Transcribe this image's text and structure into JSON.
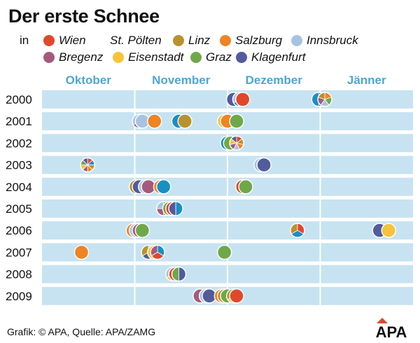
{
  "title": "Der erste Schnee",
  "legend": {
    "prefix": "in",
    "row1": [
      "Wien",
      "St. Pölten",
      "Linz",
      "Salzburg",
      "Innsbruck"
    ],
    "row2": [
      "Bregenz",
      "Eisenstadt",
      "Graz",
      "Klagenfurt"
    ]
  },
  "colors": {
    "Wien": "#e0482c",
    "St. Pölten": "#1a8fc4",
    "Linz": "#b8922e",
    "Salzburg": "#ee8424",
    "Innsbruck": "#a8c3e2",
    "Bregenz": "#a55a7c",
    "Eisenstadt": "#f6c33a",
    "Graz": "#6fa84a",
    "Klagenfurt": "#525b9c",
    "month_label": "#4ea6d2",
    "row_band": "#c7e3f1"
  },
  "footer": "Grafik: © APA, Quelle: APA/ZAMG",
  "logo": "APA",
  "chart_data": {
    "type": "scatter",
    "x_unit": "day (1 = 1 October)",
    "x_range": [
      1,
      123
    ],
    "months": [
      "Oktober",
      "November",
      "Dezember",
      "Jänner"
    ],
    "years": [
      "2000",
      "2001",
      "2002",
      "2003",
      "2004",
      "2005",
      "2006",
      "2007",
      "2008",
      "2009"
    ],
    "points": [
      {
        "year": "2000",
        "day": 64,
        "cities": [
          "Klagenfurt"
        ]
      },
      {
        "year": "2000",
        "day": 66,
        "cities": [
          "Linz",
          "St. Pölten",
          "Innsbruck"
        ]
      },
      {
        "year": "2000",
        "day": 67,
        "cities": [
          "Wien"
        ]
      },
      {
        "year": "2000",
        "day": 92,
        "cities": [
          "St. Pölten",
          "Klagenfurt"
        ]
      },
      {
        "year": "2000",
        "day": 94,
        "cities": [
          "Salzburg",
          "Graz",
          "Innsbruck",
          "Bregenz",
          "Linz"
        ]
      },
      {
        "year": "2001",
        "day": 33,
        "cities": [
          "Klagenfurt",
          "Bregenz",
          "Innsbruck"
        ]
      },
      {
        "year": "2001",
        "day": 34,
        "cities": [
          "Innsbruck"
        ]
      },
      {
        "year": "2001",
        "day": 38,
        "cities": [
          "Salzburg"
        ]
      },
      {
        "year": "2001",
        "day": 46,
        "cities": [
          "St. Pölten"
        ]
      },
      {
        "year": "2001",
        "day": 48,
        "cities": [
          "Linz"
        ]
      },
      {
        "year": "2001",
        "day": 61,
        "cities": [
          "Eisenstadt",
          "Wien"
        ]
      },
      {
        "year": "2001",
        "day": 62,
        "cities": [
          "Salzburg"
        ]
      },
      {
        "year": "2001",
        "day": 65,
        "cities": [
          "Graz"
        ]
      },
      {
        "year": "2002",
        "day": 62,
        "cities": [
          "St. Pölten"
        ]
      },
      {
        "year": "2002",
        "day": 63,
        "cities": [
          "Graz"
        ]
      },
      {
        "year": "2002",
        "day": 65,
        "cities": [
          "Wien",
          "Linz",
          "Salzburg",
          "Innsbruck",
          "Bregenz",
          "Eisenstadt",
          "Klagenfurt"
        ]
      },
      {
        "year": "2003",
        "day": 16,
        "cities": [
          "Wien",
          "St. Pölten",
          "Linz",
          "Salzburg",
          "Bregenz",
          "Eisenstadt",
          "Graz",
          "Klagenfurt"
        ]
      },
      {
        "year": "2003",
        "day": 73,
        "cities": [
          "Innsbruck"
        ]
      },
      {
        "year": "2003",
        "day": 74,
        "cities": [
          "Klagenfurt"
        ]
      },
      {
        "year": "2004",
        "day": 32,
        "cities": [
          "Linz"
        ]
      },
      {
        "year": "2004",
        "day": 33,
        "cities": [
          "Klagenfurt"
        ]
      },
      {
        "year": "2004",
        "day": 35,
        "cities": [
          "Innsbruck"
        ]
      },
      {
        "year": "2004",
        "day": 36,
        "cities": [
          "Bregenz"
        ]
      },
      {
        "year": "2004",
        "day": 40,
        "cities": [
          "Salzburg"
        ]
      },
      {
        "year": "2004",
        "day": 41,
        "cities": [
          "St. Pölten"
        ]
      },
      {
        "year": "2004",
        "day": 67,
        "cities": [
          "Wien"
        ]
      },
      {
        "year": "2004",
        "day": 68,
        "cities": [
          "Graz"
        ]
      },
      {
        "year": "2005",
        "day": 41,
        "cities": [
          "Salzburg",
          "Wien",
          "Bregenz",
          "Innsbruck"
        ]
      },
      {
        "year": "2005",
        "day": 43,
        "cities": [
          "Graz",
          "Eisenstadt"
        ]
      },
      {
        "year": "2005",
        "day": 44,
        "cities": [
          "Wien",
          "Linz"
        ]
      },
      {
        "year": "2005",
        "day": 45,
        "cities": [
          "Klagenfurt",
          "St. Pölten"
        ]
      },
      {
        "year": "2006",
        "day": 31,
        "cities": [
          "Salzburg"
        ]
      },
      {
        "year": "2006",
        "day": 32,
        "cities": [
          "Innsbruck"
        ]
      },
      {
        "year": "2006",
        "day": 33,
        "cities": [
          "Bregenz"
        ]
      },
      {
        "year": "2006",
        "day": 34,
        "cities": [
          "Graz"
        ]
      },
      {
        "year": "2006",
        "day": 85,
        "cities": [
          "Wien",
          "St. Pölten",
          "Linz"
        ]
      },
      {
        "year": "2006",
        "day": 112,
        "cities": [
          "Klagenfurt"
        ]
      },
      {
        "year": "2006",
        "day": 115,
        "cities": [
          "Eisenstadt"
        ]
      },
      {
        "year": "2007",
        "day": 14,
        "cities": [
          "Salzburg"
        ]
      },
      {
        "year": "2007",
        "day": 36,
        "cities": [
          "Innsbruck",
          "Klagenfurt",
          "Linz"
        ]
      },
      {
        "year": "2007",
        "day": 38,
        "cities": [
          "Eisenstadt",
          "Salzburg"
        ]
      },
      {
        "year": "2007",
        "day": 39,
        "cities": [
          "St. Pölten",
          "Wien",
          "Bregenz"
        ]
      },
      {
        "year": "2007",
        "day": 61,
        "cities": [
          "Graz"
        ]
      },
      {
        "year": "2008",
        "day": 44,
        "cities": [
          "St. Pölten",
          "Eisenstadt",
          "Innsbruck"
        ]
      },
      {
        "year": "2008",
        "day": 45,
        "cities": [
          "Wien",
          "Bregenz"
        ]
      },
      {
        "year": "2008",
        "day": 46,
        "cities": [
          "Graz",
          "Klagenfurt"
        ]
      },
      {
        "year": "2009",
        "day": 53,
        "cities": [
          "Bregenz"
        ]
      },
      {
        "year": "2009",
        "day": 55,
        "cities": [
          "Innsbruck"
        ]
      },
      {
        "year": "2009",
        "day": 56,
        "cities": [
          "Klagenfurt"
        ]
      },
      {
        "year": "2009",
        "day": 60,
        "cities": [
          "Salzburg"
        ]
      },
      {
        "year": "2009",
        "day": 61,
        "cities": [
          "Linz"
        ]
      },
      {
        "year": "2009",
        "day": 62,
        "cities": [
          "Graz"
        ]
      },
      {
        "year": "2009",
        "day": 64,
        "cities": [
          "St. Pölten",
          "Eisenstadt",
          "Linz"
        ]
      },
      {
        "year": "2009",
        "day": 65,
        "cities": [
          "Wien"
        ]
      }
    ]
  }
}
